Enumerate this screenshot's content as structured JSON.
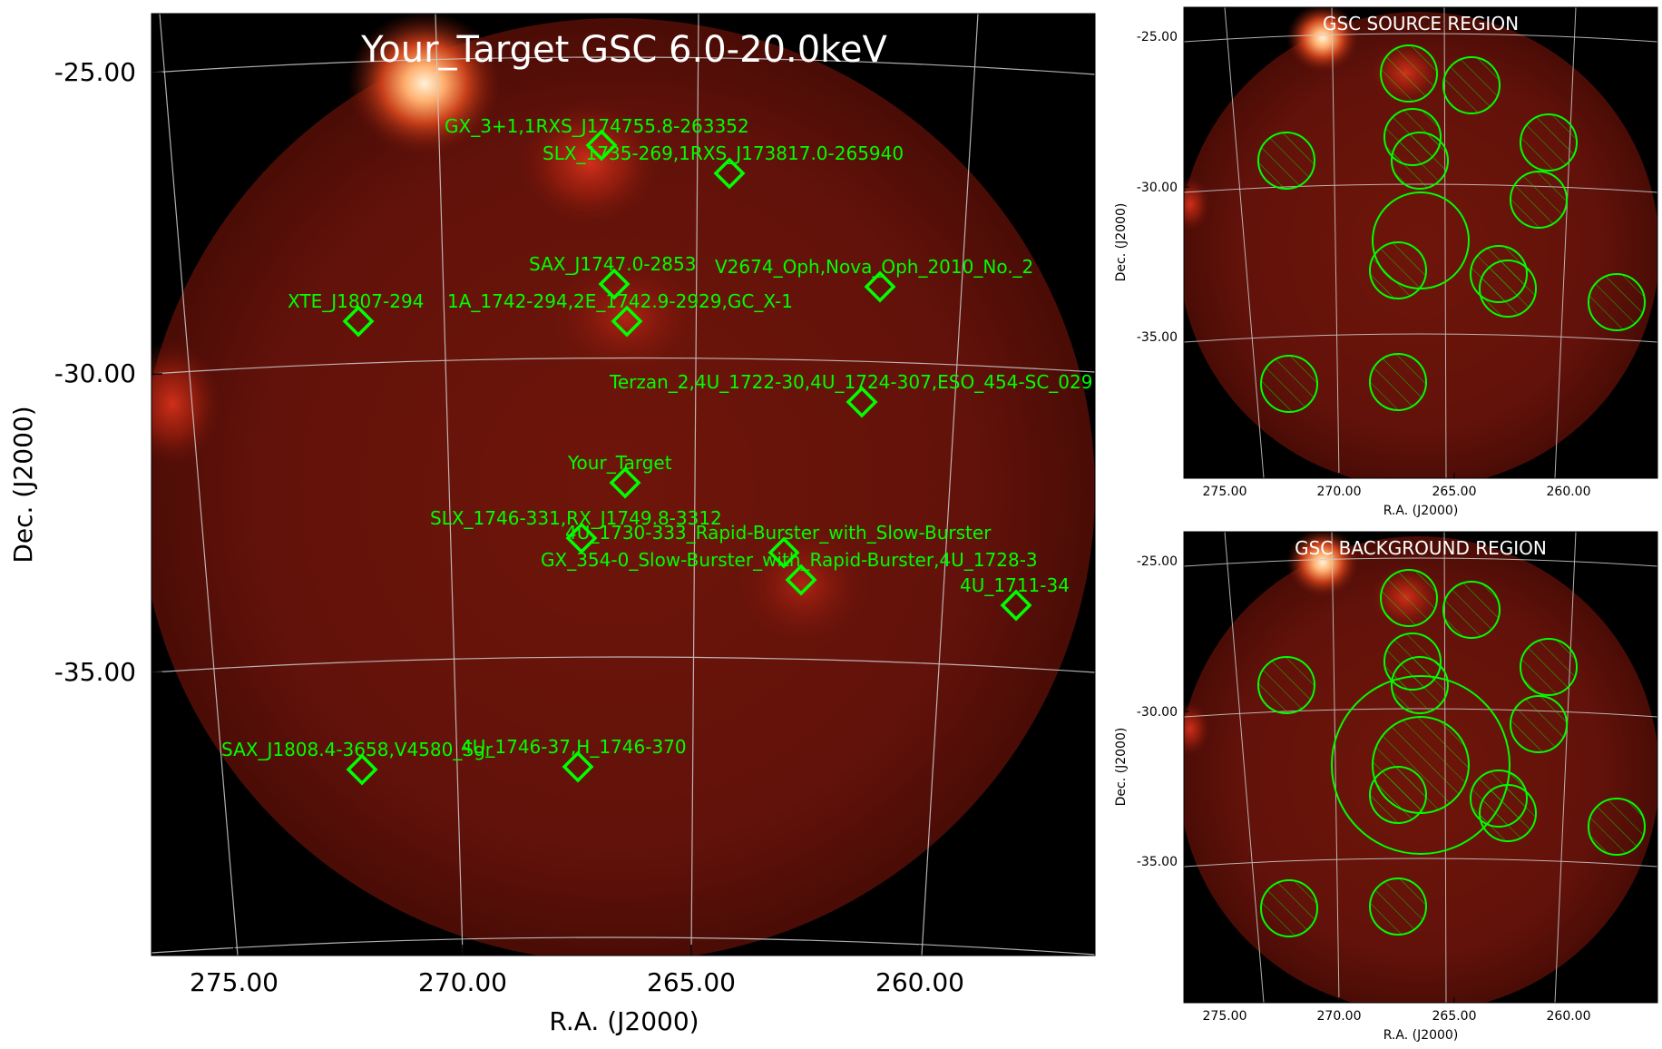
{
  "main": {
    "title": "Your_Target GSC 6.0-20.0keV",
    "xlabel": "R.A. (J2000)",
    "ylabel": "Dec. (J2000)",
    "x_ticks": [
      "275.00",
      "270.00",
      "265.00",
      "260.00"
    ],
    "y_ticks": [
      "-25.00",
      "-30.00",
      "-35.00"
    ],
    "sources": [
      {
        "label": "GX_3+1,1RXS_J174755.8-263352"
      },
      {
        "label": "SLX_1735-269,1RXS_J173817.0-265940"
      },
      {
        "label": "SAX_J1747.0-2853"
      },
      {
        "label": "V2674_Oph,Nova_Oph_2010_No._2"
      },
      {
        "label": "XTE_J1807-294"
      },
      {
        "label": "1A_1742-294,2E_1742.9-2929,GC_X-1"
      },
      {
        "label": "Terzan_2,4U_1722-30,4U_1724-307,ESO_454-SC_029"
      },
      {
        "label": "Your_Target"
      },
      {
        "label": "SLX_1746-331,RX_J1749.8-3312"
      },
      {
        "label": "4U_1730-333_Rapid-Burster_with_Slow-Burster"
      },
      {
        "label": "GX_354-0_Slow-Burster_with_Rapid-Burster,4U_1728-3"
      },
      {
        "label": "4U_1711-34"
      },
      {
        "label": "SAX_J1808.4-3658,V4580_Sgr"
      },
      {
        "label": "4U_1746-37,H_1746-370"
      }
    ]
  },
  "source_panel": {
    "title": "GSC SOURCE REGION",
    "xlabel": "R.A. (J2000)",
    "ylabel": "Dec. (J2000)",
    "x_ticks": [
      "275.00",
      "270.00",
      "265.00",
      "260.00"
    ],
    "y_ticks": [
      "-25.00",
      "-30.00",
      "-35.00"
    ]
  },
  "background_panel": {
    "title": "GSC BACKGROUND REGION",
    "xlabel": "R.A. (J2000)",
    "ylabel": "Dec. (J2000)",
    "x_ticks": [
      "275.00",
      "270.00",
      "265.00",
      "260.00"
    ],
    "y_ticks": [
      "-25.00",
      "-30.00",
      "-35.00"
    ]
  },
  "colors": {
    "marker": "#00ff00",
    "background": "#000000",
    "diffuse": "#6a1208",
    "bright": "#ffd8a0"
  }
}
